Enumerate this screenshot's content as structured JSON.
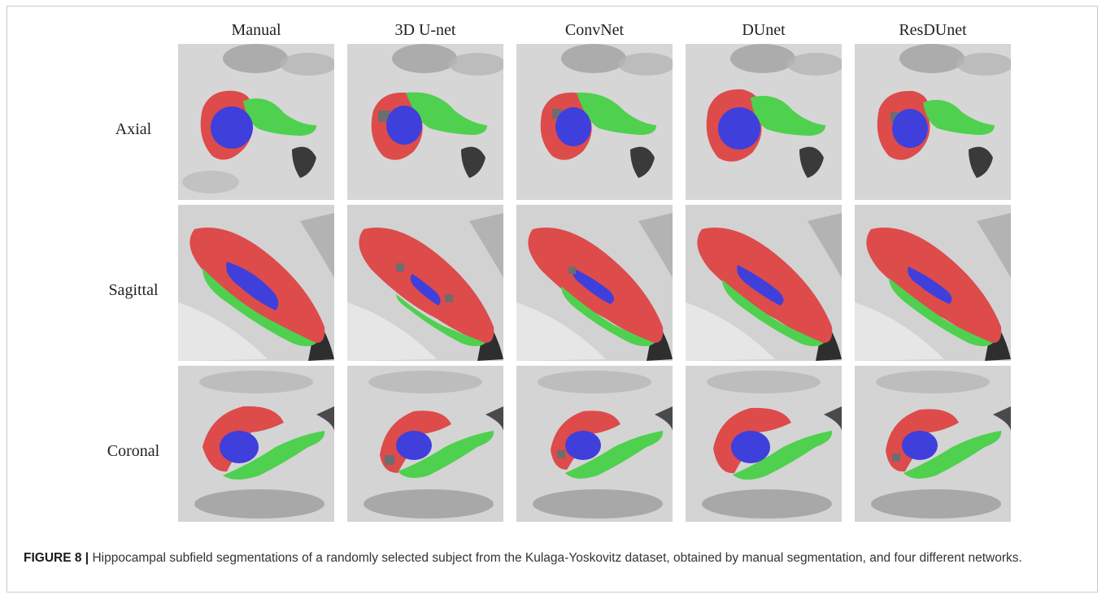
{
  "figure": {
    "columns": [
      "Manual",
      "3D U-net",
      "ConvNet",
      "DUnet",
      "ResDUnet"
    ],
    "rows": [
      "Axial",
      "Sagittal",
      "Coronal"
    ],
    "colors": {
      "subfield_red": "#dd4b4b",
      "subfield_green": "#4fd04f",
      "subfield_blue": "#3f3fdc",
      "mri_bg": "#d6d6d6"
    },
    "caption_label": "FIGURE 8 |",
    "caption_text": " Hippocampal subfield segmentations of a randomly selected subject from the Kulaga-Yoskovitz dataset, obtained by manual segmentation, and four different networks."
  }
}
